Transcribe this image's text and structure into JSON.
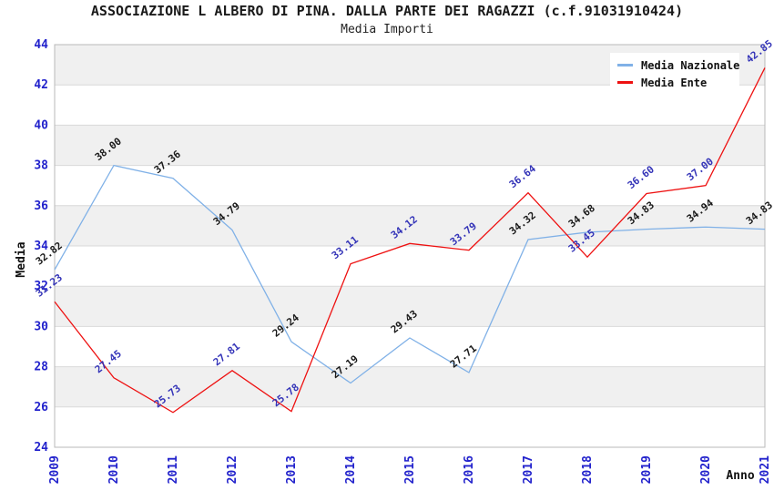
{
  "chart_data": {
    "type": "line",
    "title": "ASSOCIAZIONE L ALBERO DI PINA. DALLA PARTE DEI RAGAZZI (c.f.91031910424)",
    "subtitle": "Media Importi",
    "xlabel": "Anno",
    "ylabel": "Media",
    "ylim": [
      24,
      44
    ],
    "ytick_step": 2,
    "grid": true,
    "legend_position": "top-right",
    "categories": [
      "2009",
      "2010",
      "2011",
      "2012",
      "2013",
      "2014",
      "2015",
      "2016",
      "2017",
      "2018",
      "2019",
      "2020",
      "2021"
    ],
    "series": [
      {
        "name": "Media Nazionale",
        "color": "#80b1e7",
        "label_color": "#1a1a1a",
        "values": [
          32.82,
          38.0,
          37.36,
          34.79,
          29.24,
          27.19,
          29.43,
          27.71,
          34.32,
          34.68,
          34.83,
          34.94,
          34.83
        ]
      },
      {
        "name": "Media Ente",
        "color": "#ee1111",
        "label_color": "#3434b8",
        "values": [
          31.23,
          27.45,
          25.73,
          27.81,
          25.78,
          33.11,
          34.12,
          33.79,
          36.64,
          33.45,
          36.6,
          37.0,
          42.85
        ]
      }
    ],
    "colors": {
      "tick_label": "#2222cc",
      "band": "#f0f0f0",
      "grid": "#d9d9d9",
      "plot_border": "#b8b8b8",
      "background": "#ffffff"
    }
  }
}
